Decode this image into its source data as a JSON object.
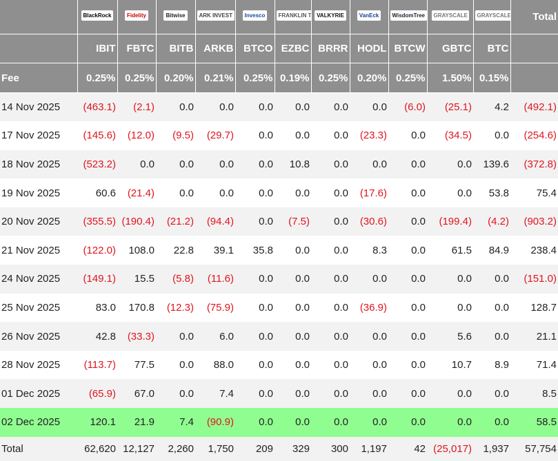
{
  "header": {
    "logos": [
      "BlackRock",
      "Fidelity",
      "Bitwise",
      "ARK INVEST",
      "Invesco",
      "FRANKLIN TEMPLETON",
      "VALKYRIE",
      "VanEck",
      "WisdomTree",
      "GRAYSCALE",
      "GRAYSCALE"
    ],
    "total_label": "Total",
    "tickers": [
      "IBIT",
      "FBTC",
      "BITB",
      "ARKB",
      "BTCO",
      "EZBC",
      "BRRR",
      "HODL",
      "BTCW",
      "GBTC",
      "BTC"
    ],
    "fee_label": "Fee",
    "fees": [
      "0.25%",
      "0.25%",
      "0.20%",
      "0.21%",
      "0.25%",
      "0.19%",
      "0.25%",
      "0.20%",
      "0.25%",
      "1.50%",
      "0.15%"
    ]
  },
  "table": {
    "rows": [
      {
        "date": "14 Nov 2025",
        "cells": [
          "(463.1)",
          "(2.1)",
          "0.0",
          "0.0",
          "0.0",
          "0.0",
          "0.0",
          "0.0",
          "(6.0)",
          "(25.1)",
          "4.2",
          "(492.1)"
        ]
      },
      {
        "date": "17 Nov 2025",
        "cells": [
          "(145.6)",
          "(12.0)",
          "(9.5)",
          "(29.7)",
          "0.0",
          "0.0",
          "0.0",
          "(23.3)",
          "0.0",
          "(34.5)",
          "0.0",
          "(254.6)"
        ]
      },
      {
        "date": "18 Nov 2025",
        "cells": [
          "(523.2)",
          "0.0",
          "0.0",
          "0.0",
          "0.0",
          "10.8",
          "0.0",
          "0.0",
          "0.0",
          "0.0",
          "139.6",
          "(372.8)"
        ]
      },
      {
        "date": "19 Nov 2025",
        "cells": [
          "60.6",
          "(21.4)",
          "0.0",
          "0.0",
          "0.0",
          "0.0",
          "0.0",
          "(17.6)",
          "0.0",
          "0.0",
          "53.8",
          "75.4"
        ]
      },
      {
        "date": "20 Nov 2025",
        "cells": [
          "(355.5)",
          "(190.4)",
          "(21.2)",
          "(94.4)",
          "0.0",
          "(7.5)",
          "0.0",
          "(30.6)",
          "0.0",
          "(199.4)",
          "(4.2)",
          "(903.2)"
        ]
      },
      {
        "date": "21 Nov 2025",
        "cells": [
          "(122.0)",
          "108.0",
          "22.8",
          "39.1",
          "35.8",
          "0.0",
          "0.0",
          "8.3",
          "0.0",
          "61.5",
          "84.9",
          "238.4"
        ]
      },
      {
        "date": "24 Nov 2025",
        "cells": [
          "(149.1)",
          "15.5",
          "(5.8)",
          "(11.6)",
          "0.0",
          "0.0",
          "0.0",
          "0.0",
          "0.0",
          "0.0",
          "0.0",
          "(151.0)"
        ]
      },
      {
        "date": "25 Nov 2025",
        "cells": [
          "83.0",
          "170.8",
          "(12.3)",
          "(75.9)",
          "0.0",
          "0.0",
          "0.0",
          "(36.9)",
          "0.0",
          "0.0",
          "0.0",
          "128.7"
        ]
      },
      {
        "date": "26 Nov 2025",
        "cells": [
          "42.8",
          "(33.3)",
          "0.0",
          "6.0",
          "0.0",
          "0.0",
          "0.0",
          "0.0",
          "0.0",
          "5.6",
          "0.0",
          "21.1"
        ]
      },
      {
        "date": "28 Nov 2025",
        "cells": [
          "(113.7)",
          "77.5",
          "0.0",
          "88.0",
          "0.0",
          "0.0",
          "0.0",
          "0.0",
          "0.0",
          "10.7",
          "8.9",
          "71.4"
        ]
      },
      {
        "date": "01 Dec 2025",
        "cells": [
          "(65.9)",
          "67.0",
          "0.0",
          "7.4",
          "0.0",
          "0.0",
          "0.0",
          "0.0",
          "0.0",
          "0.0",
          "0.0",
          "8.5"
        ]
      },
      {
        "date": "02 Dec 2025",
        "cells": [
          "120.1",
          "21.9",
          "7.4",
          "(90.9)",
          "0.0",
          "0.0",
          "0.0",
          "0.0",
          "0.0",
          "0.0",
          "0.0",
          "58.5"
        ]
      }
    ]
  },
  "totals": {
    "label": "Total",
    "cells": [
      "62,620",
      "12,127",
      "2,260",
      "1,750",
      "209",
      "329",
      "300",
      "1,197",
      "42",
      "(25,017)",
      "1,937",
      "57,754"
    ]
  }
}
